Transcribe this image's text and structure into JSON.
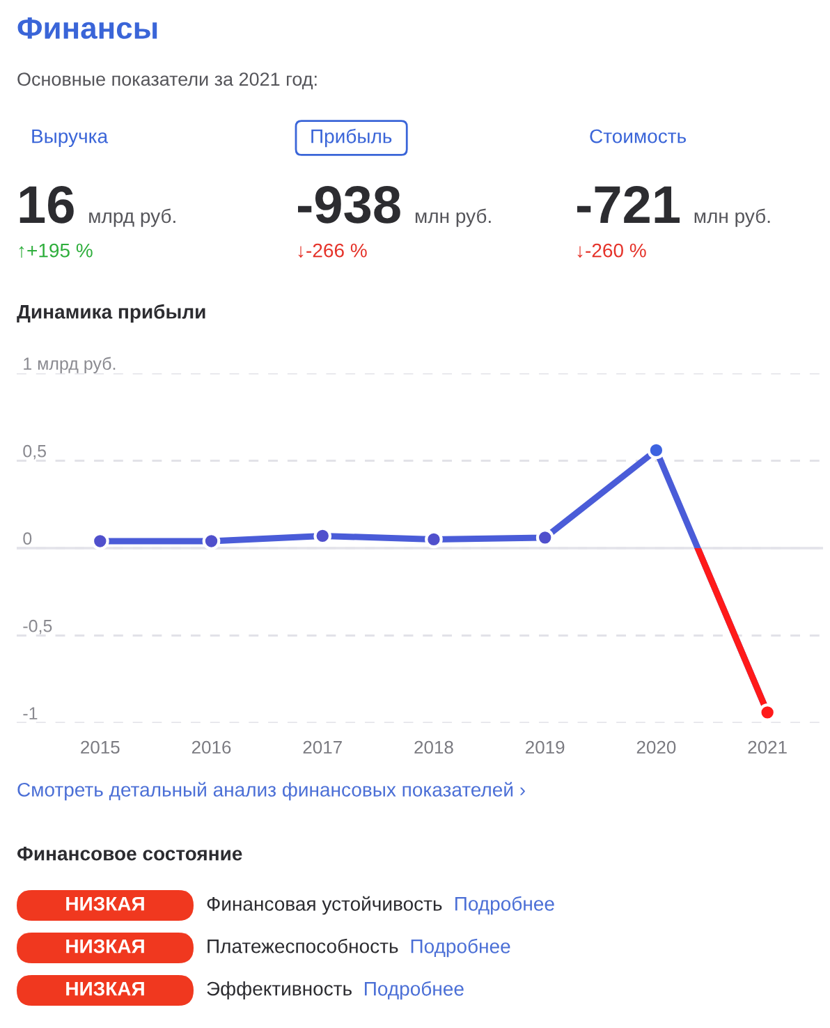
{
  "chart_data": [
    {
      "type": "other",
      "title": "Финансы",
      "subtitle": "Основные показатели за 2021 год:",
      "categories": [
        "Выручка",
        "Прибыль",
        "Стоимость"
      ],
      "values": [
        16,
        -938,
        -721
      ],
      "data_labels": true,
      "annotations": [
        "млрд руб.",
        "млн руб.",
        "млн руб.",
        "↑+195 %",
        "↓-266 %",
        "↓-260 %"
      ],
      "colors": [
        "#2eae3c",
        "#e5332a",
        "#e5332a"
      ]
    },
    {
      "type": "line",
      "title": "Динамика прибыли",
      "categories": [
        "2015",
        "2016",
        "2017",
        "2018",
        "2019",
        "2020",
        "2021"
      ],
      "series": [
        {
          "color": "#4a5cd8",
          "colors": [
            "#5050cc",
            "#5050cc",
            "#5050cc",
            "#5050cc",
            "#5050cc",
            "#3d63e0",
            "#ff1a1a"
          ],
          "values": [
            0.04,
            0.04,
            0.07,
            0.05,
            0.06,
            0.56,
            -0.94
          ]
        }
      ],
      "ylim": [
        -1,
        1
      ],
      "yticks": [
        {
          "value": -1,
          "label": "-1"
        },
        {
          "value": -0.5,
          "label": "-0,5"
        },
        0,
        {
          "value": 0.5,
          "label": "0,5"
        },
        {
          "value": 1,
          "label": "1 млрд руб."
        }
      ],
      "grid": "y",
      "marker": "circle",
      "line_style": "solid",
      "ref_lines": [
        {
          "axis": "y",
          "value": 0,
          "color": "#e3e3ea",
          "line_style": "solid"
        }
      ],
      "annotations": [
        "Смотреть детальный анализ финансовых показателей ›"
      ]
    },
    {
      "type": "other",
      "title": "Финансовое состояние",
      "categories": [
        "Финансовая устойчивость",
        "Платежеспособность",
        "Эффективность"
      ],
      "annotations": [
        "НИЗКАЯ",
        "НИЗКАЯ",
        "НИЗКАЯ",
        "Подробнее",
        "Подробнее",
        "Подробнее"
      ],
      "colors": [
        "#f0381f",
        "#f0381f",
        "#f0381f"
      ]
    }
  ]
}
